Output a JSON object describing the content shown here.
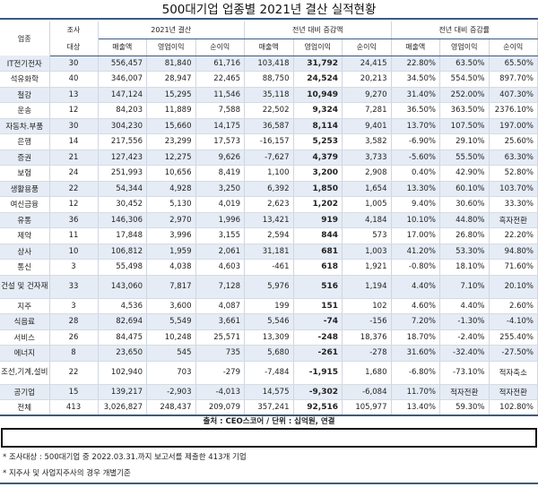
{
  "title": "500대기업 업종별 2021년 결산 실적현황",
  "headers": {
    "industry": "업종",
    "count_top": "조사",
    "count_bottom": "대상",
    "group1": "2021년 결산",
    "group2": "전년 대비 증감액",
    "group3": "전년 대비 증감률",
    "sub": [
      "매출액",
      "영업이익",
      "순이익",
      "매출액",
      "영업이익",
      "순이익",
      "매출액",
      "영업이익",
      "순이익"
    ]
  },
  "rows": [
    [
      "IT전기전자",
      "30",
      "556,457",
      "81,840",
      "61,716",
      "103,418",
      "31,792",
      "24,415",
      "22.80%",
      "63.50%",
      "65.50%"
    ],
    [
      "석유화학",
      "40",
      "346,007",
      "28,947",
      "22,465",
      "88,750",
      "24,524",
      "20,213",
      "34.50%",
      "554.50%",
      "897.70%"
    ],
    [
      "철강",
      "13",
      "147,124",
      "15,295",
      "11,546",
      "35,118",
      "10,949",
      "9,270",
      "31.40%",
      "252.00%",
      "407.30%"
    ],
    [
      "운송",
      "12",
      "84,203",
      "11,889",
      "7,588",
      "22,502",
      "9,324",
      "7,281",
      "36.50%",
      "363.50%",
      "2376.10%"
    ],
    [
      "자동차.부품",
      "30",
      "304,230",
      "15,660",
      "14,175",
      "36,587",
      "8,114",
      "9,401",
      "13.70%",
      "107.50%",
      "197.00%"
    ],
    [
      "은행",
      "14",
      "217,556",
      "23,299",
      "17,573",
      "-16,157",
      "5,253",
      "3,582",
      "-6.90%",
      "29.10%",
      "25.60%"
    ],
    [
      "증권",
      "21",
      "127,423",
      "12,275",
      "9,626",
      "-7,627",
      "4,379",
      "3,733",
      "-5.60%",
      "55.50%",
      "63.30%"
    ],
    [
      "보험",
      "24",
      "251,993",
      "10,656",
      "8,419",
      "1,100",
      "3,200",
      "2,908",
      "0.40%",
      "42.90%",
      "52.80%"
    ],
    [
      "생활용품",
      "22",
      "54,344",
      "4,928",
      "3,250",
      "6,392",
      "1,850",
      "1,654",
      "13.30%",
      "60.10%",
      "103.70%"
    ],
    [
      "여신금융",
      "12",
      "30,452",
      "5,130",
      "4,019",
      "2,623",
      "1,202",
      "1,005",
      "9.40%",
      "30.60%",
      "33.30%"
    ],
    [
      "유통",
      "36",
      "146,306",
      "2,970",
      "1,996",
      "13,421",
      "919",
      "4,184",
      "10.10%",
      "44.80%",
      "흑자전환"
    ],
    [
      "제약",
      "11",
      "17,848",
      "3,996",
      "3,155",
      "2,594",
      "844",
      "573",
      "17.00%",
      "26.80%",
      "22.20%"
    ],
    [
      "상사",
      "10",
      "106,812",
      "1,959",
      "2,061",
      "31,181",
      "681",
      "1,003",
      "41.20%",
      "53.30%",
      "94.80%"
    ],
    [
      "통신",
      "3",
      "55,498",
      "4,038",
      "4,603",
      "-461",
      "618",
      "1,921",
      "-0.80%",
      "18.10%",
      "71.60%"
    ],
    [
      "건설 및 건자재",
      "33",
      "143,060",
      "7,817",
      "7,128",
      "5,976",
      "516",
      "1,194",
      "4.40%",
      "7.10%",
      "20.10%"
    ],
    [
      "지주",
      "3",
      "4,536",
      "3,600",
      "4,087",
      "199",
      "151",
      "102",
      "4.60%",
      "4.40%",
      "2.60%"
    ],
    [
      "식음료",
      "28",
      "82,694",
      "5,549",
      "3,661",
      "5,546",
      "-74",
      "-156",
      "7.20%",
      "-1.30%",
      "-4.10%"
    ],
    [
      "서비스",
      "26",
      "84,475",
      "10,248",
      "25,571",
      "13,309",
      "-248",
      "18,376",
      "18.70%",
      "-2.40%",
      "255.40%"
    ],
    [
      "에너지",
      "8",
      "23,650",
      "545",
      "735",
      "5,680",
      "-261",
      "-278",
      "31.60%",
      "-32.40%",
      "-27.50%"
    ],
    [
      "조선,기계,설비",
      "22",
      "102,940",
      "703",
      "-279",
      "-7,484",
      "-1,915",
      "1,680",
      "-6.80%",
      "-73.10%",
      "적자축소"
    ],
    [
      "공기업",
      "15",
      "139,217",
      "-2,903",
      "-4,013",
      "14,575",
      "-9,302",
      "-6,084",
      "11.70%",
      "적자전환",
      "적자전환"
    ],
    [
      "전체",
      "413",
      "3,026,827",
      "248,437",
      "209,079",
      "357,241",
      "92,516",
      "105,977",
      "13.40%",
      "59.30%",
      "102.80%"
    ]
  ],
  "source": "출처 : CEO스코어 / 단위 : 십억원, 연결",
  "notes": [
    "* 조사대상 : 500대기업 중 2022.03.31.까지 보고서를 제출한 413개 기업",
    "* 지주사 및 사업지주사의 경우 개별기준"
  ]
}
